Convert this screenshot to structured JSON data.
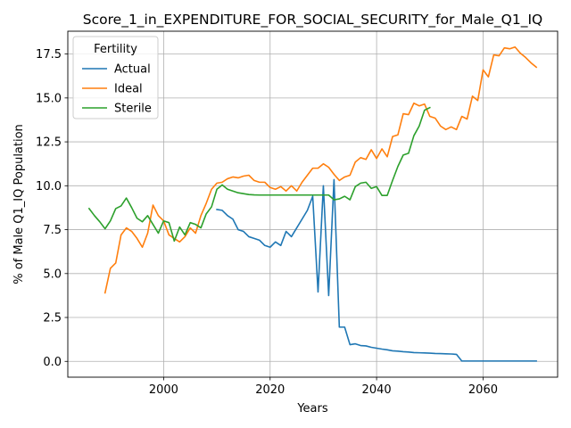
{
  "chart_data": {
    "type": "line",
    "title": "Score_1_in_EXPENDITURE_FOR_SOCIAL_SECURITY_for_Male_Q1_IQ",
    "xlabel": "Years",
    "ylabel": "% of Male Q1_IQ Population",
    "xlim": [
      1982,
      2074
    ],
    "ylim": [
      -0.9,
      18.8
    ],
    "xticks": [
      2000,
      2020,
      2040,
      2060
    ],
    "yticks": [
      0.0,
      2.5,
      5.0,
      7.5,
      10.0,
      12.5,
      15.0,
      17.5
    ],
    "ytick_labels": [
      "0.0",
      "2.5",
      "5.0",
      "7.5",
      "10.0",
      "12.5",
      "15.0",
      "17.5"
    ],
    "grid": true,
    "legend": {
      "title": "Fertility",
      "position": "top-left"
    },
    "series": [
      {
        "name": "Actual",
        "color": "#1f77b4",
        "x": [
          2010,
          2011,
          2012,
          2013,
          2014,
          2015,
          2016,
          2017,
          2018,
          2019,
          2020,
          2021,
          2022,
          2023,
          2024,
          2025,
          2026,
          2027,
          2028,
          2029,
          2030,
          2031,
          2032,
          2033,
          2034,
          2035,
          2036,
          2037,
          2038,
          2039,
          2040,
          2041,
          2042,
          2043,
          2044,
          2045,
          2046,
          2047,
          2048,
          2049,
          2050,
          2051,
          2052,
          2053,
          2054,
          2055,
          2056,
          2057,
          2058,
          2059,
          2060,
          2061,
          2062,
          2063,
          2064,
          2065,
          2066,
          2067,
          2068,
          2069,
          2070
        ],
        "y": [
          8.65,
          8.6,
          8.3,
          8.1,
          7.5,
          7.4,
          7.1,
          7.0,
          6.9,
          6.6,
          6.5,
          6.8,
          6.6,
          7.4,
          7.1,
          7.6,
          8.1,
          8.6,
          9.4,
          3.95,
          10.0,
          3.75,
          10.35,
          1.95,
          1.95,
          0.95,
          1.0,
          0.9,
          0.88,
          0.8,
          0.75,
          0.7,
          0.66,
          0.6,
          0.58,
          0.55,
          0.53,
          0.5,
          0.49,
          0.48,
          0.47,
          0.45,
          0.44,
          0.43,
          0.42,
          0.4,
          0.02,
          0.02,
          0.02,
          0.02,
          0.02,
          0.02,
          0.02,
          0.02,
          0.02,
          0.02,
          0.02,
          0.02,
          0.02,
          0.02,
          0.02
        ]
      },
      {
        "name": "Ideal",
        "color": "#ff7f0e",
        "x": [
          1989,
          1990,
          1991,
          1992,
          1993,
          1994,
          1995,
          1996,
          1997,
          1998,
          1999,
          2000,
          2001,
          2002,
          2003,
          2004,
          2005,
          2006,
          2007,
          2008,
          2009,
          2010,
          2011,
          2012,
          2013,
          2014,
          2015,
          2016,
          2017,
          2018,
          2019,
          2020,
          2021,
          2022,
          2023,
          2024,
          2025,
          2026,
          2027,
          2028,
          2029,
          2030,
          2031,
          2032,
          2033,
          2034,
          2035,
          2036,
          2037,
          2038,
          2039,
          2040,
          2041,
          2042,
          2043,
          2044,
          2045,
          2046,
          2047,
          2048,
          2049,
          2050,
          2051,
          2052,
          2053,
          2054,
          2055,
          2056,
          2057,
          2058,
          2059,
          2060,
          2061,
          2062,
          2063,
          2064,
          2065,
          2066,
          2067,
          2068,
          2069,
          2070
        ],
        "y": [
          3.9,
          5.3,
          5.6,
          7.2,
          7.6,
          7.4,
          7.0,
          6.5,
          7.3,
          8.9,
          8.3,
          8.0,
          7.2,
          7.0,
          6.8,
          7.1,
          7.6,
          7.3,
          8.3,
          9.0,
          9.8,
          10.15,
          10.2,
          10.4,
          10.5,
          10.45,
          10.55,
          10.6,
          10.3,
          10.2,
          10.2,
          9.9,
          9.8,
          9.95,
          9.7,
          10.0,
          9.7,
          10.2,
          10.6,
          11.0,
          11.0,
          11.25,
          11.05,
          10.65,
          10.3,
          10.5,
          10.6,
          11.35,
          11.6,
          11.5,
          12.05,
          11.55,
          12.1,
          11.65,
          12.8,
          12.9,
          14.1,
          14.05,
          14.7,
          14.55,
          14.65,
          13.95,
          13.85,
          13.4,
          13.2,
          13.35,
          13.2,
          13.95,
          13.8,
          15.1,
          14.85,
          16.6,
          16.2,
          17.45,
          17.4,
          17.85,
          17.8,
          17.9,
          17.55,
          17.3,
          17.0,
          16.75
        ]
      },
      {
        "name": "Sterile",
        "color": "#2ca02c",
        "x": [
          1986,
          1987,
          1988,
          1989,
          1990,
          1991,
          1992,
          1993,
          1994,
          1995,
          1996,
          1997,
          1998,
          1999,
          2000,
          2001,
          2002,
          2003,
          2004,
          2005,
          2006,
          2007,
          2008,
          2009,
          2010,
          2011,
          2012,
          2013,
          2014,
          2015,
          2016,
          2017,
          2018,
          2019,
          2020,
          2021,
          2022,
          2023,
          2024,
          2025,
          2026,
          2027,
          2028,
          2029,
          2030,
          2031,
          2032,
          2033,
          2034,
          2035,
          2036,
          2037,
          2038,
          2039,
          2040,
          2041,
          2042,
          2043,
          2044,
          2045,
          2046,
          2047,
          2048,
          2049,
          2050
        ],
        "y": [
          8.7,
          8.3,
          7.95,
          7.55,
          8.0,
          8.7,
          8.85,
          9.3,
          8.75,
          8.15,
          7.95,
          8.3,
          7.8,
          7.3,
          8.0,
          7.9,
          6.85,
          7.65,
          7.2,
          7.9,
          7.8,
          7.6,
          8.4,
          8.8,
          9.8,
          10.05,
          9.8,
          9.7,
          9.6,
          9.55,
          9.5,
          9.48,
          9.47,
          9.47,
          9.47,
          9.47,
          9.47,
          9.47,
          9.47,
          9.47,
          9.47,
          9.47,
          9.47,
          9.47,
          9.47,
          9.47,
          9.2,
          9.25,
          9.4,
          9.2,
          9.95,
          10.15,
          10.2,
          9.85,
          9.95,
          9.45,
          9.45,
          10.3,
          11.1,
          11.75,
          11.85,
          12.85,
          13.4,
          14.3,
          14.45
        ]
      }
    ]
  }
}
